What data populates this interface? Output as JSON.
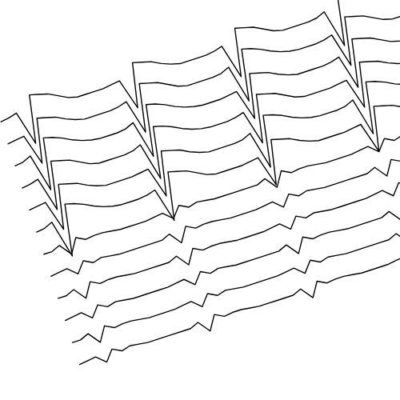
{
  "chart_data": {
    "type": "line",
    "tick_labels": false,
    "grid": false,
    "xlim": [
      0,
      48
    ],
    "ylim": [
      -3,
      3
    ],
    "x": [
      0,
      1,
      2,
      3,
      4,
      5,
      6,
      7,
      8,
      9,
      10,
      11,
      12,
      13,
      14,
      15,
      16,
      17,
      18,
      19,
      20,
      21,
      22,
      23,
      24,
      25,
      26,
      27,
      28,
      29,
      30,
      31,
      32,
      33,
      34,
      35,
      36,
      37,
      38,
      39,
      40,
      41,
      42,
      43,
      44,
      45,
      46,
      47,
      48
    ],
    "series": [
      {
        "color": "#000000",
        "values": [
          0,
          0.1,
          0.3,
          -2.6,
          1.4,
          1.2,
          1,
          0.6,
          0.2,
          0,
          0,
          0,
          0,
          0.1,
          0.2,
          -2.4,
          1.3,
          1.1,
          0.9,
          0.5,
          0.2,
          0,
          0,
          0,
          0,
          0.1,
          0.3,
          -2.6,
          1.4,
          1.2,
          1,
          0.6,
          0.2,
          0,
          0,
          0,
          0,
          0.1,
          0.4,
          -2.8,
          1.5,
          1.3,
          1,
          0.6,
          0.3,
          0.1,
          0,
          0,
          0
        ]
      },
      {
        "color": "#000000",
        "values": [
          0,
          0.1,
          0.2,
          -2.4,
          1.3,
          1.1,
          0.9,
          0.5,
          0.2,
          0,
          0,
          0,
          0,
          0.1,
          0.3,
          -2.6,
          1.4,
          1.2,
          1,
          0.6,
          0.2,
          0,
          0,
          0,
          0,
          0.1,
          0.4,
          -2.8,
          1.5,
          1.3,
          1,
          0.6,
          0.3,
          0.1,
          0,
          0,
          0,
          0.1,
          0.3,
          -2.6,
          1.4,
          1.2,
          1,
          0.6,
          0.2,
          0,
          0,
          0,
          0
        ]
      },
      {
        "color": "#000000",
        "values": [
          0,
          0.1,
          0.4,
          -2.8,
          1.5,
          1.3,
          1,
          0.6,
          0.3,
          0.1,
          0,
          0,
          0,
          0.1,
          0.4,
          -2.8,
          1.5,
          1.3,
          1,
          0.6,
          0.3,
          0.1,
          0,
          0,
          0,
          0.1,
          0.2,
          -2.4,
          1.3,
          1.1,
          0.9,
          0.5,
          0.2,
          0,
          0,
          0,
          0,
          0.1,
          0.3,
          -2.6,
          1.4,
          1.2,
          1,
          0.6,
          0.2,
          0,
          0,
          0,
          0
        ]
      },
      {
        "color": "#000000",
        "values": [
          0,
          0.1,
          0.3,
          -2.6,
          1.4,
          1.2,
          1,
          0.6,
          0.2,
          0,
          0,
          0,
          0,
          0.1,
          0.4,
          -2.8,
          1.5,
          1.3,
          1,
          0.6,
          0.3,
          0.1,
          0,
          0,
          0,
          0.1,
          0.3,
          -2.6,
          1.4,
          1.2,
          1,
          0.6,
          0.2,
          0,
          0,
          0,
          0,
          0.1,
          0.2,
          -2.4,
          1.3,
          1.1,
          0.9,
          0.5,
          0.2,
          0,
          0,
          0,
          0
        ]
      },
      {
        "color": "#000000",
        "values": [
          0,
          0.1,
          0.2,
          -2.4,
          1.3,
          1.1,
          0.9,
          0.5,
          0.2,
          0,
          0,
          0,
          0,
          0.1,
          0.2,
          -2.4,
          1.3,
          1.1,
          0.9,
          0.5,
          0.2,
          0,
          0,
          0,
          0,
          0.1,
          0.4,
          -2.8,
          1.5,
          1.3,
          1,
          0.6,
          0.3,
          0.1,
          0,
          0,
          0,
          0.1,
          0.4,
          -2.8,
          1.5,
          1.3,
          1,
          0.6,
          0.3,
          0.1,
          0,
          0,
          0
        ]
      },
      {
        "color": "#000000",
        "values": [
          0,
          0.1,
          0.4,
          -2.8,
          1.5,
          1.3,
          1,
          0.6,
          0.3,
          0.1,
          0,
          0,
          0,
          0.1,
          0.3,
          -2.6,
          1.4,
          1.2,
          1,
          0.6,
          0.2,
          0,
          0,
          0,
          0,
          0.1,
          0.2,
          -2.4,
          1.3,
          1.1,
          0.9,
          0.5,
          0.2,
          0,
          0,
          0,
          0,
          0.1,
          0.2,
          -2.4,
          1.3,
          1.1,
          0.9,
          0.5,
          0.2,
          0,
          0,
          0,
          0
        ]
      },
      {
        "color": "#000000",
        "values": [
          0,
          0,
          0.3,
          -0.7,
          0.5,
          0.1,
          0.2,
          0.2,
          0.1,
          0,
          0,
          0,
          0,
          0.1,
          0.2,
          -0.5,
          0.4,
          0,
          0.2,
          0.1,
          0,
          0,
          0,
          0,
          0,
          0,
          0.3,
          -0.7,
          0.5,
          0.1,
          0.2,
          0.2,
          0.1,
          0,
          0,
          0,
          0,
          0.1,
          0.2,
          -0.5,
          0.4,
          0,
          0.2,
          0.1,
          0,
          0,
          0,
          0,
          0
        ]
      },
      {
        "color": "#000000",
        "values": [
          0,
          0.1,
          0.2,
          -0.5,
          0.4,
          0,
          0.2,
          0.1,
          0,
          0,
          0,
          0,
          0,
          0,
          0.3,
          -0.7,
          0.5,
          0.1,
          0.2,
          0.2,
          0.1,
          0,
          0,
          0,
          0,
          0.1,
          0.2,
          -0.5,
          0.4,
          0,
          0.2,
          0.1,
          0,
          0,
          0,
          0,
          0,
          0,
          0.3,
          -0.7,
          0.5,
          0.1,
          0.2,
          0.2,
          0.1,
          0,
          0,
          0,
          0
        ]
      },
      {
        "color": "#000000",
        "values": [
          0,
          0,
          0.3,
          -0.7,
          0.5,
          0.1,
          0.2,
          0.2,
          0.1,
          0,
          0,
          0,
          0,
          0,
          0.3,
          -0.7,
          0.5,
          0.1,
          0.2,
          0.2,
          0.1,
          0,
          0,
          0,
          0,
          0.1,
          0.2,
          -0.5,
          0.4,
          0,
          0.2,
          0.1,
          0,
          0,
          0,
          0,
          0,
          0.1,
          0.2,
          -0.5,
          0.4,
          0,
          0.2,
          0.1,
          0,
          0,
          0,
          0,
          0
        ]
      },
      {
        "color": "#000000",
        "values": [
          0,
          0.1,
          0.2,
          -0.5,
          0.4,
          0,
          0.2,
          0.1,
          0,
          0,
          0,
          0,
          0,
          0.1,
          0.2,
          -0.5,
          0.4,
          0,
          0.2,
          0.1,
          0,
          0,
          0,
          0,
          0,
          0,
          0.3,
          -0.7,
          0.5,
          0.1,
          0.2,
          0.2,
          0.1,
          0,
          0,
          0,
          0,
          0,
          0.3,
          -0.7,
          0.5,
          0.1,
          0.2,
          0.2,
          0.1,
          0,
          0,
          0,
          0
        ]
      },
      {
        "color": "#000000",
        "values": [
          0,
          0,
          0.3,
          -0.7,
          0.5,
          0.1,
          0.2,
          0.2,
          0.1,
          0,
          0,
          0,
          0,
          0.1,
          0.2,
          -0.5,
          0.4,
          0,
          0.2,
          0.1,
          0,
          0,
          0,
          0,
          0,
          0.1,
          0.2,
          -0.5,
          0.4,
          0,
          0.2,
          0.1,
          0,
          0,
          0,
          0,
          0,
          0,
          0.3,
          -0.7,
          0.5,
          0.1,
          0.2,
          0.2,
          0.1,
          0,
          0,
          0,
          0
        ]
      },
      {
        "color": "#000000",
        "values": [
          0,
          0.1,
          0.2,
          -0.5,
          0.4,
          0,
          0.2,
          0.1,
          0,
          0,
          0,
          0,
          0,
          0,
          0.3,
          -0.7,
          0.5,
          0.1,
          0.2,
          0.2,
          0.1,
          0,
          0,
          0,
          0,
          0,
          0.3,
          -0.7,
          0.5,
          0.1,
          0.2,
          0.2,
          0.1,
          0,
          0,
          0,
          0,
          0.1,
          0.2,
          -0.5,
          0.4,
          0,
          0.2,
          0.1,
          0,
          0,
          0,
          0,
          0
        ]
      }
    ]
  }
}
